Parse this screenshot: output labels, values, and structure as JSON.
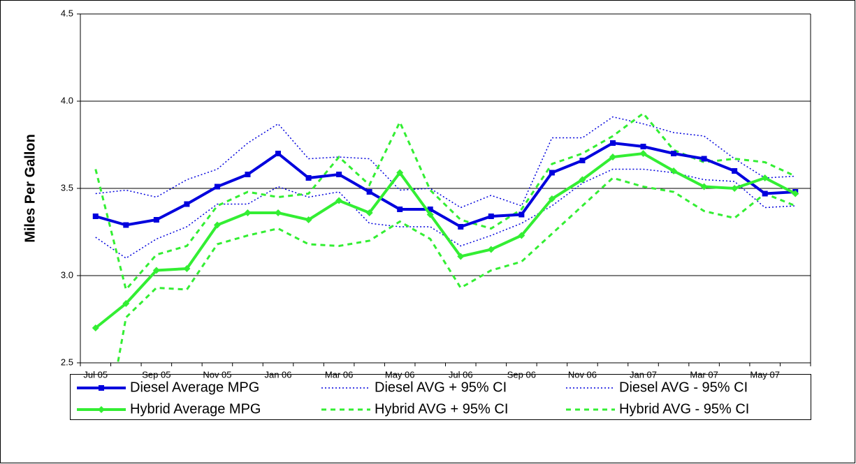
{
  "chart_data": {
    "type": "line",
    "y_label": "Miles Per Gallon",
    "categories": [
      "Jul 05",
      null,
      "Sep 05",
      null,
      "Nov 05",
      null,
      "Jan 06",
      null,
      "Mar 06",
      null,
      "May 06",
      null,
      "Jul 06",
      null,
      "Sep 06",
      null,
      "Nov 06",
      null,
      "Jan 07",
      null,
      "Mar 07",
      null,
      "May 07",
      null
    ],
    "ylim": [
      2.5,
      4.5
    ],
    "yticks": [
      2.5,
      {
        "value": 3,
        "label": "3.0"
      },
      3.5,
      {
        "value": 4,
        "label": "4.0"
      },
      4.5
    ],
    "grid": true,
    "legend": "bottom",
    "series": [
      {
        "name": "Diesel Average MPG",
        "color": "#0000dd",
        "style": "solid",
        "marker": "square",
        "values": [
          3.34,
          3.29,
          3.32,
          3.41,
          3.51,
          3.58,
          3.7,
          3.56,
          3.58,
          3.48,
          3.38,
          3.38,
          3.28,
          3.34,
          3.35,
          3.59,
          3.66,
          3.76,
          3.74,
          3.7,
          3.67,
          3.6,
          3.47,
          3.48
        ]
      },
      {
        "name": "Diesel AVG + 95% CI",
        "color": "#0000dd",
        "style": "dotted",
        "values": [
          3.47,
          3.49,
          3.45,
          3.55,
          3.61,
          3.76,
          3.87,
          3.67,
          3.68,
          3.67,
          3.49,
          3.5,
          3.39,
          3.46,
          3.4,
          3.79,
          3.79,
          3.91,
          3.87,
          3.82,
          3.8,
          3.67,
          3.56,
          3.57
        ]
      },
      {
        "name": "Diesel AVG - 95% CI",
        "color": "#0000dd",
        "style": "dotted",
        "values": [
          3.22,
          3.1,
          3.21,
          3.28,
          3.41,
          3.41,
          3.51,
          3.45,
          3.48,
          3.3,
          3.28,
          3.28,
          3.17,
          3.23,
          3.3,
          3.4,
          3.53,
          3.61,
          3.61,
          3.59,
          3.55,
          3.54,
          3.39,
          3.4
        ]
      },
      {
        "name": "Hybrid Average MPG",
        "color": "#33ee33",
        "style": "solid",
        "marker": "diamond",
        "values": [
          2.7,
          2.84,
          3.03,
          3.04,
          3.29,
          3.36,
          3.36,
          3.32,
          3.43,
          3.36,
          3.59,
          3.35,
          3.11,
          3.15,
          3.23,
          3.44,
          3.55,
          3.68,
          3.7,
          3.6,
          3.51,
          3.5,
          3.56,
          3.47
        ]
      },
      {
        "name": "Hybrid AVG + 95% CI",
        "color": "#33ee33",
        "style": "dashed",
        "values": [
          3.61,
          2.92,
          3.12,
          3.17,
          3.4,
          3.48,
          3.45,
          3.47,
          3.68,
          3.52,
          3.88,
          3.49,
          3.32,
          3.27,
          3.38,
          3.64,
          3.7,
          3.8,
          3.93,
          3.72,
          3.65,
          3.67,
          3.65,
          3.57
        ]
      },
      {
        "name": "Hybrid AVG - 95% CI",
        "color": "#33ee33",
        "style": "dashed",
        "values": [
          1.79,
          2.76,
          2.93,
          2.92,
          3.18,
          3.23,
          3.27,
          3.18,
          3.17,
          3.2,
          3.31,
          3.21,
          2.93,
          3.03,
          3.08,
          3.24,
          3.4,
          3.56,
          3.51,
          3.48,
          3.37,
          3.33,
          3.47,
          3.4
        ]
      }
    ]
  }
}
